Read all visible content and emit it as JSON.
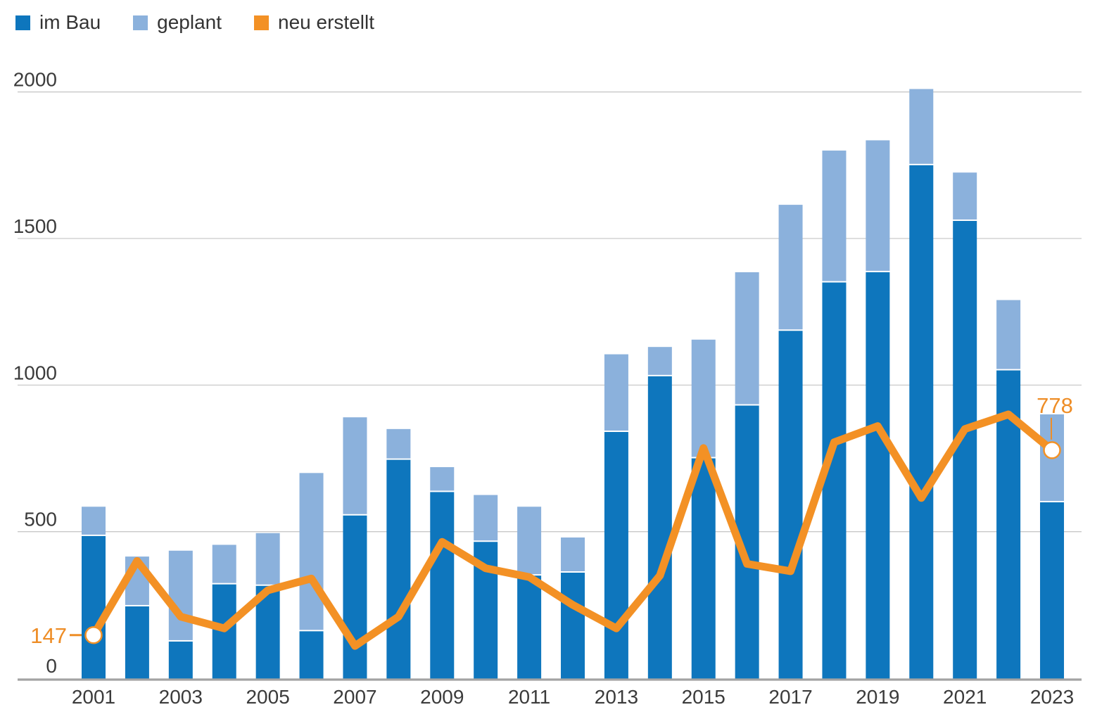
{
  "legend": {
    "items": [
      {
        "label": "im Bau"
      },
      {
        "label": "geplant"
      },
      {
        "label": "neu erstellt"
      }
    ]
  },
  "colors": {
    "bar_dark_blue": "#0e76bd",
    "bar_light_blue": "#8bb1dc",
    "line_orange": "#f39125",
    "annotation_orange": "#ee8d26",
    "gridline": "#c9c9c9",
    "axis_line": "#a3a3a3",
    "tick_text": "#3b3b3b"
  },
  "chart_data": {
    "type": "bar",
    "subtype": "stacked-bars-with-line",
    "categories": [
      "2001",
      "2002",
      "2003",
      "2004",
      "2005",
      "2006",
      "2007",
      "2008",
      "2009",
      "2010",
      "2011",
      "2012",
      "2013",
      "2014",
      "2015",
      "2016",
      "2017",
      "2018",
      "2019",
      "2020",
      "2021",
      "2022",
      "2023"
    ],
    "series": [
      {
        "name": "im Bau",
        "type": "bar",
        "stacked": true,
        "color": "#0e76bd",
        "values": [
          485,
          245,
          125,
          320,
          315,
          160,
          555,
          745,
          635,
          465,
          350,
          360,
          840,
          1030,
          750,
          930,
          1185,
          1350,
          1385,
          1750,
          1560,
          1050,
          600
        ]
      },
      {
        "name": "geplant",
        "type": "bar",
        "stacked": true,
        "color": "#8bb1dc",
        "values": [
          100,
          170,
          310,
          135,
          180,
          540,
          335,
          105,
          85,
          160,
          235,
          120,
          265,
          100,
          405,
          455,
          430,
          450,
          450,
          260,
          165,
          240,
          300
        ]
      },
      {
        "name": "neu erstellt",
        "type": "line",
        "color": "#f39125",
        "values": [
          147,
          400,
          210,
          170,
          300,
          340,
          110,
          210,
          465,
          375,
          345,
          250,
          170,
          350,
          785,
          390,
          365,
          805,
          860,
          615,
          850,
          900,
          778
        ]
      }
    ],
    "annotations": [
      {
        "series": "neu erstellt",
        "index": 0,
        "label": "147",
        "position": "left"
      },
      {
        "series": "neu erstellt",
        "index": 22,
        "label": "778",
        "position": "above"
      }
    ],
    "y_axis": {
      "ticks": [
        0,
        500,
        1000,
        1500,
        2000
      ],
      "range": [
        0,
        2000
      ],
      "grid": true
    },
    "x_axis": {
      "tick_labels": [
        "2001",
        "2003",
        "2005",
        "2007",
        "2009",
        "2011",
        "2013",
        "2015",
        "2017",
        "2019",
        "2021",
        "2023"
      ]
    },
    "legend_position": "top-left"
  }
}
